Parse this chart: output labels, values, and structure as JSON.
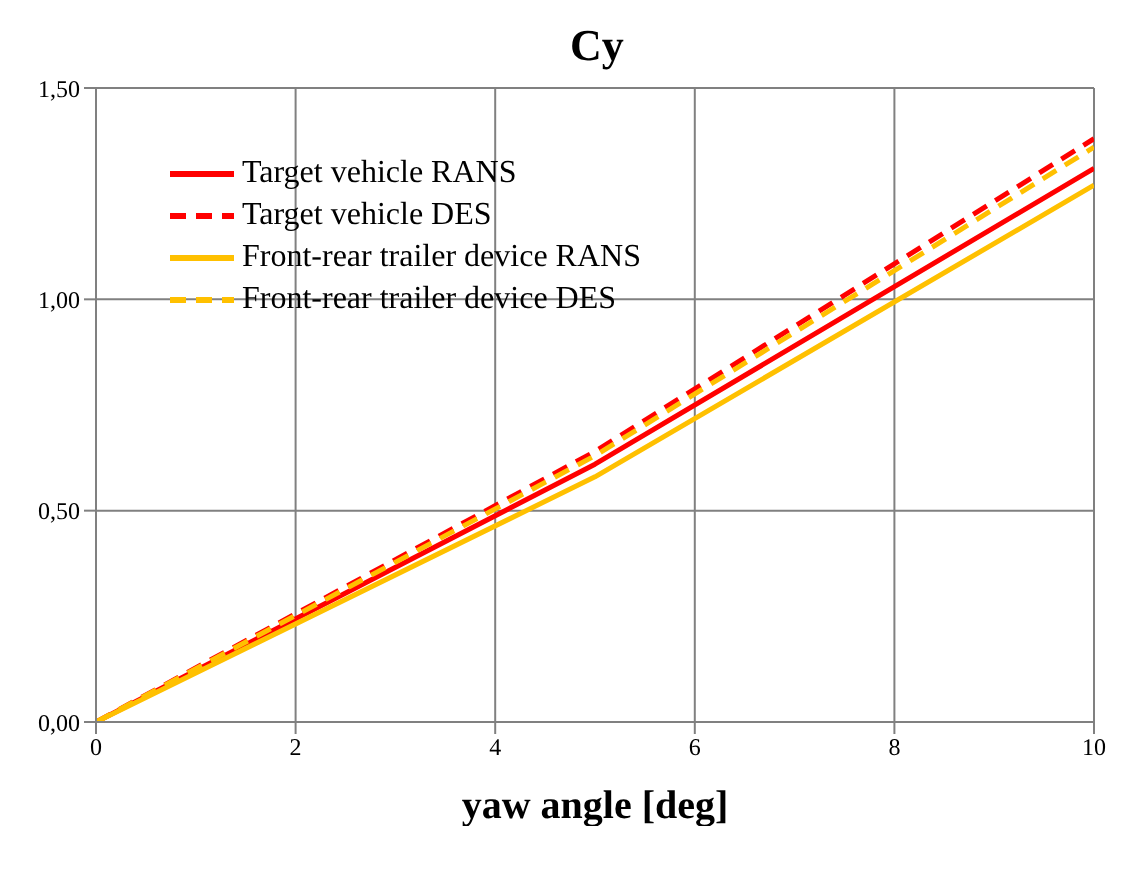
{
  "chart_data": {
    "type": "line",
    "title": "Cy",
    "xlabel": "yaw angle [deg]",
    "x": [
      0,
      5,
      10
    ],
    "series": [
      {
        "name": "Target vehicle RANS",
        "color": "#ff0000",
        "values": [
          0,
          0.61,
          1.31
        ],
        "line_style": "solid"
      },
      {
        "name": "Target vehicle DES",
        "color": "#ff0000",
        "values": [
          0,
          0.64,
          1.38
        ],
        "line_style": "dashed"
      },
      {
        "name": "Front-rear trailer device RANS",
        "color": "#ffc000",
        "values": [
          0,
          0.58,
          1.27
        ],
        "line_style": "solid"
      },
      {
        "name": "Front-rear trailer device DES",
        "color": "#ffc000",
        "values": [
          0,
          0.63,
          1.36
        ],
        "line_style": "dashed"
      }
    ],
    "xlim": [
      0,
      10
    ],
    "xticks": [
      0,
      2,
      4,
      6,
      8,
      10
    ],
    "ylim": [
      0,
      1.5
    ],
    "yticks": [
      {
        "value": 0,
        "label": "0,00"
      },
      {
        "value": 0.5,
        "label": "0,50"
      },
      {
        "value": 1,
        "label": "1,00"
      },
      {
        "value": 1.5,
        "label": "1,50"
      }
    ],
    "grid": true,
    "legend": "top left",
    "marker": "none"
  }
}
